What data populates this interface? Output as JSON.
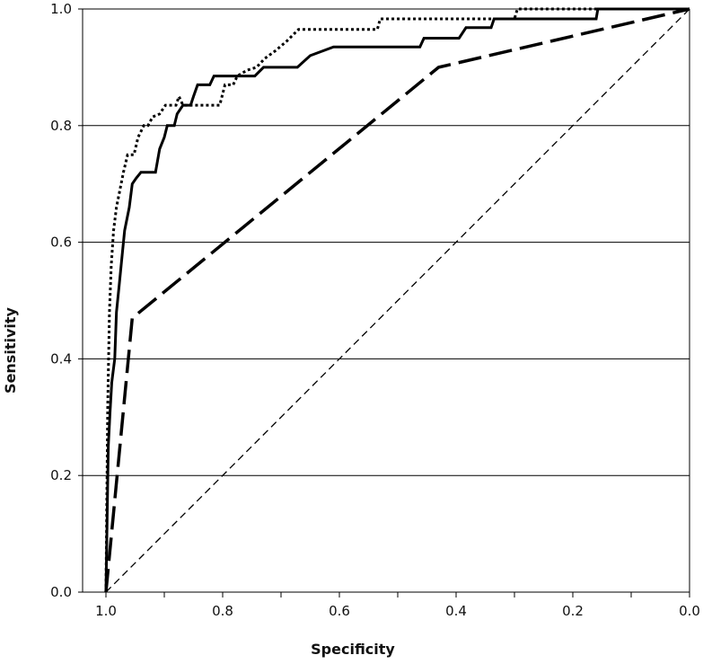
{
  "chart_data": {
    "type": "line",
    "title": "",
    "xlabel": "Specificity",
    "ylabel": "Sensitivity",
    "xlim": [
      1.0,
      0.0
    ],
    "ylim": [
      0.0,
      1.0
    ],
    "x_reversed": true,
    "grid": "horizontal",
    "legend": "none",
    "x_ticks": [
      1.0,
      0.8,
      0.6,
      0.4,
      0.2,
      0.0
    ],
    "x_tick_labels": [
      "1.0",
      "0.8",
      "0.6",
      "0.4",
      "0.2",
      "0.0"
    ],
    "y_ticks": [
      0.0,
      0.2,
      0.4,
      0.6,
      0.8,
      1.0
    ],
    "y_tick_labels": [
      "0.0",
      "0.2",
      "0.4",
      "0.6",
      "0.8",
      "1.0"
    ],
    "series": [
      {
        "style": "solid",
        "color": "#000000",
        "points": [
          [
            1.0,
            0.0
          ],
          [
            0.996,
            0.25
          ],
          [
            0.993,
            0.31
          ],
          [
            0.99,
            0.36
          ],
          [
            0.985,
            0.4
          ],
          [
            0.982,
            0.48
          ],
          [
            0.977,
            0.53
          ],
          [
            0.972,
            0.58
          ],
          [
            0.968,
            0.62
          ],
          [
            0.96,
            0.66
          ],
          [
            0.955,
            0.7
          ],
          [
            0.948,
            0.71
          ],
          [
            0.94,
            0.72
          ],
          [
            0.915,
            0.72
          ],
          [
            0.908,
            0.76
          ],
          [
            0.9,
            0.78
          ],
          [
            0.895,
            0.8
          ],
          [
            0.883,
            0.8
          ],
          [
            0.878,
            0.82
          ],
          [
            0.868,
            0.835
          ],
          [
            0.855,
            0.835
          ],
          [
            0.85,
            0.85
          ],
          [
            0.843,
            0.87
          ],
          [
            0.822,
            0.87
          ],
          [
            0.815,
            0.885
          ],
          [
            0.745,
            0.885
          ],
          [
            0.73,
            0.9
          ],
          [
            0.672,
            0.9
          ],
          [
            0.65,
            0.92
          ],
          [
            0.61,
            0.935
          ],
          [
            0.462,
            0.935
          ],
          [
            0.455,
            0.95
          ],
          [
            0.395,
            0.95
          ],
          [
            0.383,
            0.968
          ],
          [
            0.34,
            0.968
          ],
          [
            0.335,
            0.983
          ],
          [
            0.16,
            0.983
          ],
          [
            0.157,
            1.0
          ],
          [
            0.0,
            1.0
          ]
        ]
      },
      {
        "style": "dotted",
        "color": "#000000",
        "points": [
          [
            1.0,
            0.0
          ],
          [
            0.997,
            0.32
          ],
          [
            0.994,
            0.48
          ],
          [
            0.991,
            0.56
          ],
          [
            0.987,
            0.62
          ],
          [
            0.982,
            0.66
          ],
          [
            0.976,
            0.69
          ],
          [
            0.97,
            0.72
          ],
          [
            0.963,
            0.75
          ],
          [
            0.952,
            0.75
          ],
          [
            0.945,
            0.78
          ],
          [
            0.935,
            0.8
          ],
          [
            0.928,
            0.8
          ],
          [
            0.92,
            0.815
          ],
          [
            0.908,
            0.82
          ],
          [
            0.898,
            0.835
          ],
          [
            0.88,
            0.835
          ],
          [
            0.875,
            0.85
          ],
          [
            0.868,
            0.835
          ],
          [
            0.805,
            0.835
          ],
          [
            0.796,
            0.87
          ],
          [
            0.782,
            0.87
          ],
          [
            0.775,
            0.885
          ],
          [
            0.758,
            0.895
          ],
          [
            0.742,
            0.9
          ],
          [
            0.728,
            0.915
          ],
          [
            0.71,
            0.928
          ],
          [
            0.69,
            0.945
          ],
          [
            0.67,
            0.965
          ],
          [
            0.535,
            0.965
          ],
          [
            0.53,
            0.983
          ],
          [
            0.3,
            0.983
          ],
          [
            0.295,
            1.0
          ],
          [
            0.0,
            1.0
          ]
        ]
      },
      {
        "style": "dashed",
        "color": "#000000",
        "points": [
          [
            1.0,
            0.0
          ],
          [
            0.955,
            0.47
          ],
          [
            0.43,
            0.9
          ],
          [
            0.0,
            1.0
          ]
        ]
      },
      {
        "style": "thin-dashed",
        "color": "#000000",
        "points": [
          [
            1.0,
            0.0
          ],
          [
            0.0,
            1.0
          ]
        ]
      }
    ]
  }
}
